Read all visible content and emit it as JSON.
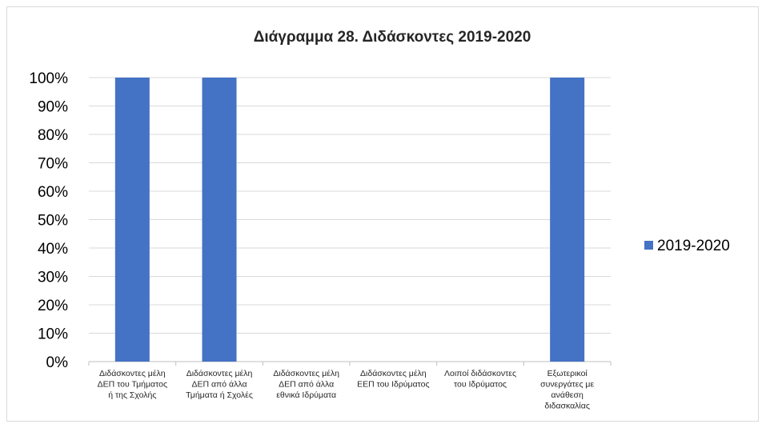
{
  "chart_data": {
    "type": "bar",
    "title": "Διάγραμμα 28. Διδάσκοντες 2019-2020",
    "categories": [
      [
        "Διδάσκοντες μέλη",
        "ΔΕΠ του Τμήματος",
        "ή της Σχολής"
      ],
      [
        "Διδάσκοντες μέλη",
        "ΔΕΠ από άλλα",
        "Τμήματα ή Σχολές"
      ],
      [
        "Διδάσκοντες μέλη",
        "ΔΕΠ από άλλα",
        "εθνικά Ιδρύματα"
      ],
      [
        "Διδάσκοντες μέλη",
        "ΕΕΠ του Ιδρύματος"
      ],
      [
        "Λοιποί διδάσκοντες",
        "του Ιδρύματος"
      ],
      [
        "Εξωτερικοί",
        "συνεργάτες με",
        "ανάθεση",
        "διδασκαλίας"
      ]
    ],
    "series": [
      {
        "name": "2019-2020",
        "values": [
          100,
          100,
          0,
          0,
          0,
          100
        ],
        "color": "#4472c4"
      }
    ],
    "yticks": [
      "0%",
      "10%",
      "20%",
      "30%",
      "40%",
      "50%",
      "60%",
      "70%",
      "80%",
      "90%",
      "100%"
    ],
    "ylim": [
      0,
      100
    ],
    "grid": true,
    "legend": "right"
  }
}
